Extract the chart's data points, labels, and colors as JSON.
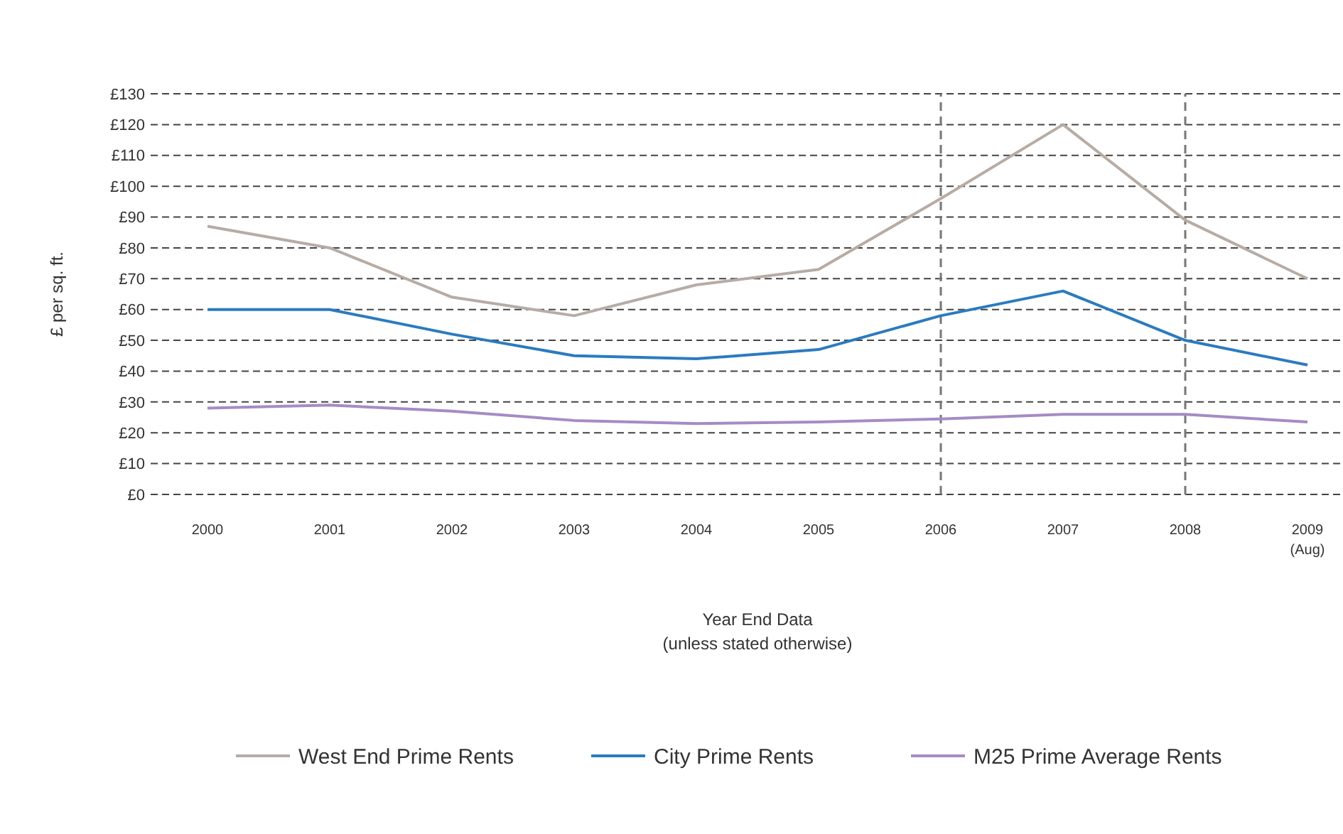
{
  "chart_data": {
    "type": "line",
    "ylabel": "£ per sq. ft.",
    "xlabel": "Year End Data\n(unless stated otherwise)",
    "categories": [
      "2000",
      "2001",
      "2002",
      "2003",
      "2004",
      "2005",
      "2006",
      "2007",
      "2008",
      "2009\n(Aug)"
    ],
    "series": [
      {
        "name": "West End Prime Rents",
        "color": "#b7aca4",
        "values": [
          87,
          80,
          64,
          58,
          68,
          73,
          96,
          120,
          89,
          70
        ]
      },
      {
        "name": "City Prime Rents",
        "color": "#2b7bc0",
        "values": [
          60,
          60,
          52,
          45,
          44,
          47,
          58,
          66,
          50,
          42
        ]
      },
      {
        "name": "M25 Prime Average Rents",
        "color": "#a68bc4",
        "values": [
          28,
          29,
          27,
          24,
          23,
          23.5,
          24.5,
          26,
          26,
          23.5
        ]
      }
    ],
    "ylim": [
      0,
      130
    ],
    "yticks": [
      {
        "value": 0,
        "label": "£0"
      },
      {
        "value": 10,
        "label": "£10"
      },
      {
        "value": 20,
        "label": "£20"
      },
      {
        "value": 30,
        "label": "£30"
      },
      {
        "value": 40,
        "label": "£40"
      },
      {
        "value": 50,
        "label": "£50"
      },
      {
        "value": 60,
        "label": "£60"
      },
      {
        "value": 70,
        "label": "£70"
      },
      {
        "value": 80,
        "label": "£80"
      },
      {
        "value": 90,
        "label": "£90"
      },
      {
        "value": 100,
        "label": "£100"
      },
      {
        "value": 110,
        "label": "£110"
      },
      {
        "value": 120,
        "label": "£120"
      },
      {
        "value": 130,
        "label": "£130"
      }
    ],
    "grid": "y",
    "legend": "bottom",
    "marker": "none",
    "line_style": "solid",
    "ref_lines": [
      {
        "axis": "x",
        "value": "2006",
        "color": "#777777",
        "line_style": "dashed"
      },
      {
        "axis": "x",
        "value": "2008",
        "color": "#777777",
        "line_style": "dashed"
      }
    ]
  }
}
